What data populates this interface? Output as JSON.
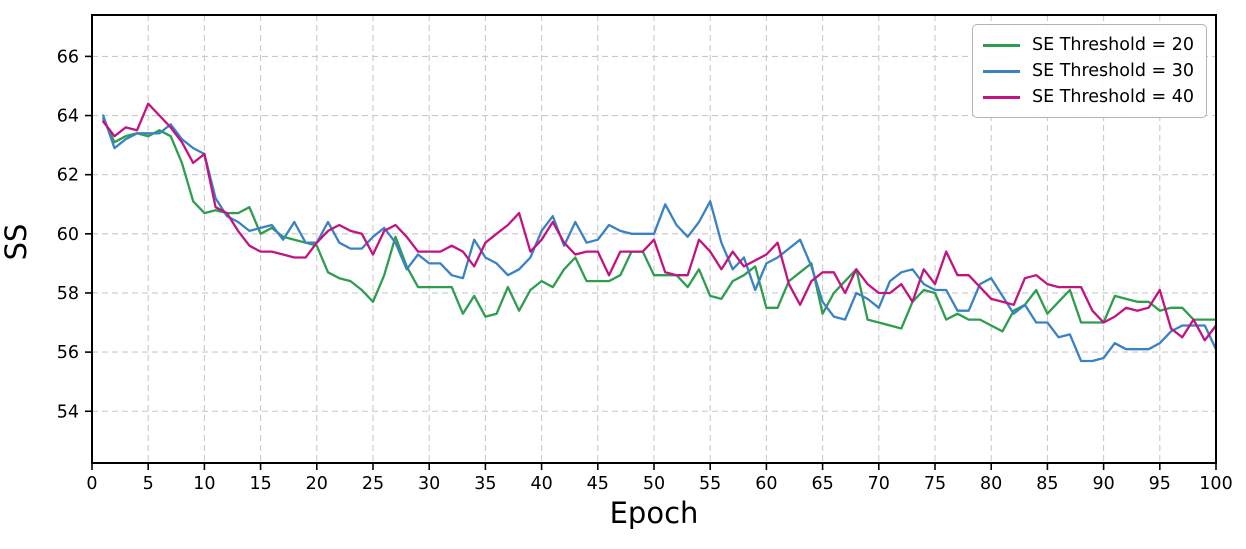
{
  "chart_data": {
    "type": "line",
    "title": "",
    "xlabel": "Epoch",
    "ylabel": "SS",
    "xlim": [
      0,
      100
    ],
    "ylim": [
      52.25,
      67.4
    ],
    "xticks": [
      0,
      5,
      10,
      15,
      20,
      25,
      30,
      35,
      40,
      45,
      50,
      55,
      60,
      65,
      70,
      75,
      80,
      85,
      90,
      95,
      100
    ],
    "yticks": [
      54,
      56,
      58,
      60,
      62,
      64,
      66
    ],
    "grid": true,
    "grid_style": "dashed",
    "legend_position": "upper right",
    "epochs": [
      1,
      2,
      3,
      4,
      5,
      6,
      7,
      8,
      9,
      10,
      11,
      12,
      13,
      14,
      15,
      16,
      17,
      18,
      19,
      20,
      21,
      22,
      23,
      24,
      25,
      26,
      27,
      28,
      29,
      30,
      31,
      32,
      33,
      34,
      35,
      36,
      37,
      38,
      39,
      40,
      41,
      42,
      43,
      44,
      45,
      46,
      47,
      48,
      49,
      50,
      51,
      52,
      53,
      54,
      55,
      56,
      57,
      58,
      59,
      60,
      61,
      62,
      63,
      64,
      65,
      66,
      67,
      68,
      69,
      70,
      71,
      72,
      73,
      74,
      75,
      76,
      77,
      78,
      79,
      80,
      81,
      82,
      83,
      84,
      85,
      86,
      87,
      88,
      89,
      90,
      91,
      92,
      93,
      94,
      95,
      96,
      97,
      98,
      99,
      100
    ],
    "series": [
      {
        "name": "SE Threshold = 20",
        "color": "#2e9d50",
        "values": [
          63.9,
          63.1,
          63.3,
          63.4,
          63.3,
          63.5,
          63.3,
          62.4,
          61.1,
          60.7,
          60.8,
          60.7,
          60.7,
          60.9,
          60.0,
          60.2,
          59.9,
          59.8,
          59.7,
          59.6,
          58.7,
          58.5,
          58.4,
          58.1,
          57.7,
          58.6,
          59.9,
          58.9,
          58.2,
          58.2,
          58.2,
          58.2,
          57.3,
          57.9,
          57.2,
          57.3,
          58.2,
          57.4,
          58.1,
          58.4,
          58.2,
          58.8,
          59.2,
          58.4,
          58.4,
          58.4,
          58.6,
          59.4,
          59.4,
          58.6,
          58.6,
          58.6,
          58.2,
          58.8,
          57.9,
          57.8,
          58.4,
          58.6,
          58.9,
          57.5,
          57.5,
          58.4,
          58.7,
          59.0,
          57.3,
          58.0,
          58.4,
          58.8,
          57.1,
          57.0,
          56.9,
          56.8,
          57.7,
          58.1,
          58.0,
          57.1,
          57.3,
          57.1,
          57.1,
          56.9,
          56.7,
          57.4,
          57.6,
          58.1,
          57.3,
          57.7,
          58.1,
          57.0,
          57.0,
          57.0,
          57.9,
          57.8,
          57.7,
          57.7,
          57.4,
          57.5,
          57.5,
          57.1,
          57.1,
          57.1
        ]
      },
      {
        "name": "SE Threshold = 30",
        "color": "#3b82c3",
        "values": [
          64.0,
          62.9,
          63.2,
          63.4,
          63.4,
          63.4,
          63.7,
          63.2,
          62.9,
          62.7,
          61.2,
          60.6,
          60.4,
          60.1,
          60.2,
          60.3,
          59.8,
          60.4,
          59.7,
          59.7,
          60.4,
          59.7,
          59.5,
          59.5,
          59.9,
          60.2,
          59.7,
          58.8,
          59.3,
          59.0,
          59.0,
          58.6,
          58.5,
          59.8,
          59.2,
          59.0,
          58.6,
          58.8,
          59.2,
          60.1,
          60.6,
          59.6,
          60.4,
          59.7,
          59.8,
          60.3,
          60.1,
          60.0,
          60.0,
          60.0,
          61.0,
          60.3,
          59.9,
          60.4,
          61.1,
          59.7,
          58.8,
          59.2,
          58.1,
          59.0,
          59.2,
          59.5,
          59.8,
          58.9,
          57.7,
          57.2,
          57.1,
          58.0,
          57.8,
          57.5,
          58.4,
          58.7,
          58.8,
          58.3,
          58.1,
          58.1,
          57.4,
          57.4,
          58.3,
          58.5,
          57.9,
          57.3,
          57.6,
          57.0,
          57.0,
          56.5,
          56.6,
          55.7,
          55.7,
          55.8,
          56.3,
          56.1,
          56.1,
          56.1,
          56.3,
          56.7,
          56.9,
          56.9,
          56.9,
          56.1
        ]
      },
      {
        "name": "SE Threshold = 40",
        "color": "#c11483",
        "values": [
          63.8,
          63.3,
          63.6,
          63.5,
          64.4,
          64.0,
          63.6,
          63.1,
          62.4,
          62.7,
          60.9,
          60.7,
          60.1,
          59.6,
          59.4,
          59.4,
          59.3,
          59.2,
          59.2,
          59.7,
          60.1,
          60.3,
          60.1,
          60.0,
          59.3,
          60.1,
          60.3,
          59.9,
          59.4,
          59.4,
          59.4,
          59.6,
          59.4,
          58.9,
          59.7,
          60.0,
          60.3,
          60.7,
          59.4,
          59.8,
          60.4,
          59.7,
          59.3,
          59.4,
          59.4,
          58.6,
          59.4,
          59.4,
          59.4,
          59.8,
          58.7,
          58.6,
          58.6,
          59.8,
          59.4,
          58.8,
          59.4,
          58.9,
          59.1,
          59.3,
          59.7,
          58.3,
          57.6,
          58.4,
          58.7,
          58.7,
          58.0,
          58.8,
          58.3,
          58.0,
          58.0,
          58.3,
          57.7,
          58.8,
          58.3,
          59.4,
          58.6,
          58.6,
          58.2,
          57.8,
          57.7,
          57.6,
          58.5,
          58.6,
          58.3,
          58.2,
          58.2,
          58.2,
          57.4,
          57.0,
          57.2,
          57.5,
          57.4,
          57.5,
          58.1,
          56.8,
          56.5,
          57.1,
          56.4,
          56.9
        ]
      }
    ]
  }
}
